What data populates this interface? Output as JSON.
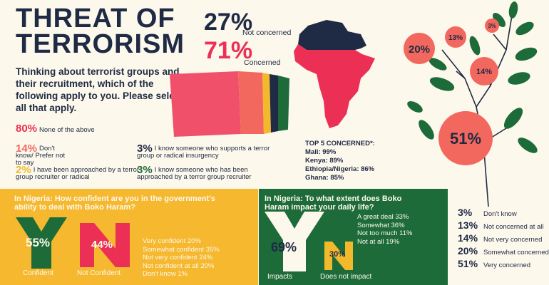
{
  "title_line1": "THREAT OF",
  "title_line2": "TERRORISM",
  "question": "Thinking about terrorist groups and their recruitment, which of the following apply to you. Please select all that apply.",
  "headline": {
    "not_concerned_value": "27%",
    "not_concerned_label": "Not concerned",
    "concerned_value": "71%",
    "concerned_label": "Concerned"
  },
  "options": [
    {
      "value": "80%",
      "label": "None of the above",
      "color": "#ec2f55"
    },
    {
      "value": "14%",
      "label": "Don't know/ Prefer not to say",
      "color": "#f2685e"
    },
    {
      "value": "2%",
      "label": "I have been approached by a terror group recruiter or radical",
      "color": "#f3b92c"
    },
    {
      "value": "3%",
      "label": "I know someone who supports a terror group or radical insurgency",
      "color": "#1f2a44"
    },
    {
      "value": "3%",
      "label": "I know someone who has been approached by a terror group recruiter",
      "color": "#1e6b3a"
    }
  ],
  "top5": {
    "heading": "TOP 5 CONCERNED*:",
    "rows": [
      "Mali: 99%",
      "Kenya: 89%",
      "Ethiopia/Nigeria: 86%",
      "Ghana: 85%"
    ]
  },
  "tree": {
    "bubbles": [
      {
        "value": "20%"
      },
      {
        "value": "13%"
      },
      {
        "value": "3%"
      },
      {
        "value": "14%"
      },
      {
        "value": "51%"
      }
    ]
  },
  "legend": [
    {
      "value": "3%",
      "label": "Don't know",
      "color": "#1f2a44"
    },
    {
      "value": "13%",
      "label": "Not concerned at all",
      "color": "#1f2a44"
    },
    {
      "value": "14%",
      "label": "Not very concerned",
      "color": "#1f2a44"
    },
    {
      "value": "20%",
      "label": "Somewhat concerned",
      "color": "#1f2a44"
    },
    {
      "value": "51%",
      "label": "Very concerned",
      "color": "#1f2a44"
    }
  ],
  "nigeria_confidence": {
    "question": "In Nigeria: How confident are you in the government's ability to deal with Boko Haram?",
    "confident_value": "55%",
    "confident_label": "Confident",
    "not_confident_value": "44%",
    "not_confident_label": "Not Confident",
    "breakdown": [
      "Very confident 20%",
      "Somewhat confident 35%",
      "Not very confident 24%",
      "Not confident at all 20%",
      "Don't know 1%"
    ]
  },
  "nigeria_impact": {
    "question": "In Nigeria: To what extent does Boko Haram impact your daily life?",
    "impacts_value": "69%",
    "impacts_label": "Impacts",
    "no_impact_value": "30%",
    "no_impact_label": "Does not impact",
    "breakdown": [
      "A great deal 33%",
      "Somewhat 36%",
      "Not too much 11%",
      "Not at all 19%"
    ]
  },
  "colors": {
    "navy": "#1f2a44",
    "red": "#ec2f55",
    "salmon": "#f2685e",
    "yellow": "#f5b82e",
    "green": "#1e6b3a",
    "cream": "#fdf8ec"
  }
}
